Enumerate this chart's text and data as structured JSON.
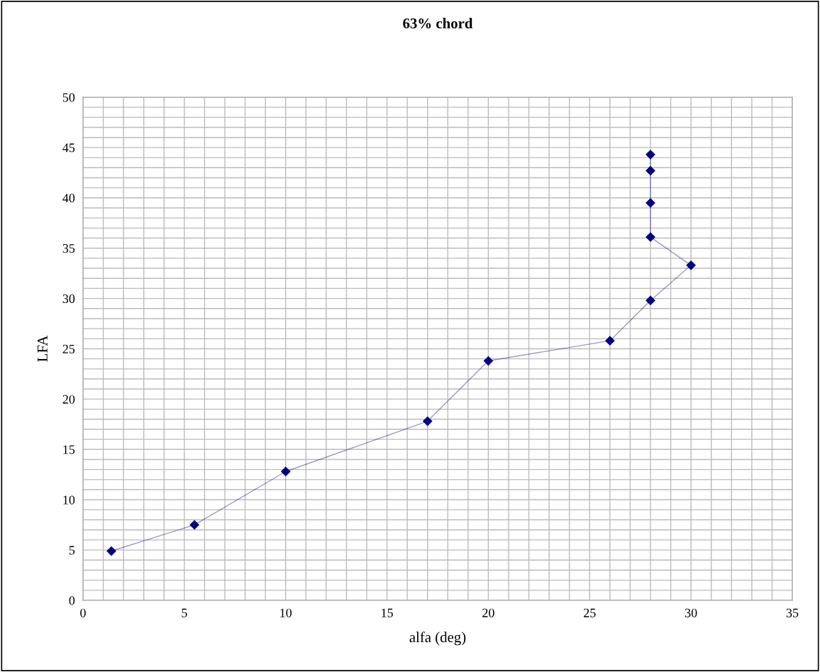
{
  "chart_data": {
    "type": "line",
    "title": "63% chord",
    "xlabel": "alfa (deg)",
    "ylabel": "LFA",
    "series": [
      {
        "color": "#000080",
        "x": [
          1.4,
          5.5,
          10,
          17,
          20,
          26,
          28,
          30,
          28,
          28,
          28,
          28
        ],
        "values": [
          4.9,
          7.5,
          12.8,
          17.8,
          23.8,
          25.8,
          29.8,
          33.3,
          36.1,
          39.5,
          42.7,
          44.3
        ]
      }
    ],
    "xlim": [
      0,
      35
    ],
    "ylim": [
      0,
      50
    ],
    "xticks": [
      0,
      {
        "value": 1,
        "label": null
      },
      {
        "value": 2,
        "label": null
      },
      {
        "value": 3,
        "label": null
      },
      {
        "value": 4,
        "label": null
      },
      5,
      {
        "value": 6,
        "label": null
      },
      {
        "value": 7,
        "label": null
      },
      {
        "value": 8,
        "label": null
      },
      {
        "value": 9,
        "label": null
      },
      10,
      {
        "value": 11,
        "label": null
      },
      {
        "value": 12,
        "label": null
      },
      {
        "value": 13,
        "label": null
      },
      {
        "value": 14,
        "label": null
      },
      15,
      {
        "value": 16,
        "label": null
      },
      {
        "value": 17,
        "label": null
      },
      {
        "value": 18,
        "label": null
      },
      {
        "value": 19,
        "label": null
      },
      20,
      {
        "value": 21,
        "label": null
      },
      {
        "value": 22,
        "label": null
      },
      {
        "value": 23,
        "label": null
      },
      {
        "value": 24,
        "label": null
      },
      25,
      {
        "value": 26,
        "label": null
      },
      {
        "value": 27,
        "label": null
      },
      {
        "value": 28,
        "label": null
      },
      {
        "value": 29,
        "label": null
      },
      30,
      {
        "value": 31,
        "label": null
      },
      {
        "value": 32,
        "label": null
      },
      {
        "value": 33,
        "label": null
      },
      {
        "value": 34,
        "label": null
      },
      35
    ],
    "yticks": [
      0,
      {
        "value": 1,
        "label": null
      },
      {
        "value": 2,
        "label": null
      },
      {
        "value": 3,
        "label": null
      },
      {
        "value": 4,
        "label": null
      },
      5,
      {
        "value": 6,
        "label": null
      },
      {
        "value": 7,
        "label": null
      },
      {
        "value": 8,
        "label": null
      },
      {
        "value": 9,
        "label": null
      },
      10,
      {
        "value": 11,
        "label": null
      },
      {
        "value": 12,
        "label": null
      },
      {
        "value": 13,
        "label": null
      },
      {
        "value": 14,
        "label": null
      },
      15,
      {
        "value": 16,
        "label": null
      },
      {
        "value": 17,
        "label": null
      },
      {
        "value": 18,
        "label": null
      },
      {
        "value": 19,
        "label": null
      },
      20,
      {
        "value": 21,
        "label": null
      },
      {
        "value": 22,
        "label": null
      },
      {
        "value": 23,
        "label": null
      },
      {
        "value": 24,
        "label": null
      },
      25,
      {
        "value": 26,
        "label": null
      },
      {
        "value": 27,
        "label": null
      },
      {
        "value": 28,
        "label": null
      },
      {
        "value": 29,
        "label": null
      },
      30,
      {
        "value": 31,
        "label": null
      },
      {
        "value": 32,
        "label": null
      },
      {
        "value": 33,
        "label": null
      },
      {
        "value": 34,
        "label": null
      },
      35,
      {
        "value": 36,
        "label": null
      },
      {
        "value": 37,
        "label": null
      },
      {
        "value": 38,
        "label": null
      },
      {
        "value": 39,
        "label": null
      },
      40,
      {
        "value": 41,
        "label": null
      },
      {
        "value": 42,
        "label": null
      },
      {
        "value": 43,
        "label": null
      },
      {
        "value": 44,
        "label": null
      },
      45,
      {
        "value": 46,
        "label": null
      },
      {
        "value": 47,
        "label": null
      },
      {
        "value": 48,
        "label": null
      },
      {
        "value": 49,
        "label": null
      },
      50
    ],
    "grid": true,
    "marker": "diamond",
    "line_style": "solid"
  }
}
